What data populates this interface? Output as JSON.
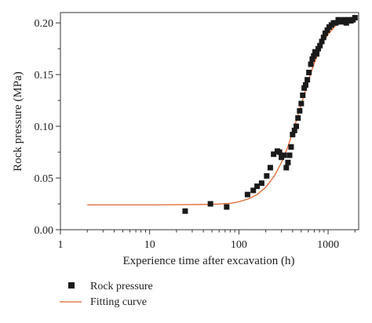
{
  "chart_data": {
    "type": "scatter",
    "title": "",
    "xlabel": "Experience time after excavation (h)",
    "ylabel": "Rock pressure (MPa)",
    "xscale": "log",
    "xlim": [
      1,
      2200
    ],
    "ylim": [
      0,
      0.21
    ],
    "xticks": [
      1,
      10,
      100,
      1000
    ],
    "xtick_labels": [
      "1",
      "10",
      "100",
      "1000"
    ],
    "yticks": [
      0,
      0.05,
      0.1,
      0.15,
      0.2
    ],
    "ytick_labels": [
      "0.00",
      "0.05",
      "0.10",
      "0.15",
      "0.20"
    ],
    "grid": false,
    "legend_position": "bottom-left",
    "series": [
      {
        "name": "Rock pressure",
        "kind": "scatter",
        "marker": "square",
        "color": "#1a1a1a",
        "points": [
          [
            25,
            0.018
          ],
          [
            48,
            0.025
          ],
          [
            73,
            0.022
          ],
          [
            125,
            0.034
          ],
          [
            145,
            0.038
          ],
          [
            160,
            0.042
          ],
          [
            180,
            0.045
          ],
          [
            205,
            0.052
          ],
          [
            225,
            0.06
          ],
          [
            245,
            0.073
          ],
          [
            270,
            0.076
          ],
          [
            285,
            0.075
          ],
          [
            300,
            0.07
          ],
          [
            320,
            0.072
          ],
          [
            340,
            0.06
          ],
          [
            355,
            0.065
          ],
          [
            370,
            0.072
          ],
          [
            385,
            0.08
          ],
          [
            400,
            0.092
          ],
          [
            420,
            0.096
          ],
          [
            440,
            0.1
          ],
          [
            460,
            0.108
          ],
          [
            480,
            0.115
          ],
          [
            500,
            0.122
          ],
          [
            520,
            0.13
          ],
          [
            540,
            0.137
          ],
          [
            560,
            0.14
          ],
          [
            585,
            0.145
          ],
          [
            610,
            0.152
          ],
          [
            640,
            0.16
          ],
          [
            665,
            0.165
          ],
          [
            690,
            0.168
          ],
          [
            715,
            0.172
          ],
          [
            745,
            0.17
          ],
          [
            775,
            0.175
          ],
          [
            810,
            0.178
          ],
          [
            850,
            0.182
          ],
          [
            890,
            0.186
          ],
          [
            930,
            0.19
          ],
          [
            980,
            0.193
          ],
          [
            1030,
            0.196
          ],
          [
            1090,
            0.198
          ],
          [
            1150,
            0.2
          ],
          [
            1220,
            0.2
          ],
          [
            1300,
            0.203
          ],
          [
            1400,
            0.201
          ],
          [
            1500,
            0.203
          ],
          [
            1600,
            0.2
          ],
          [
            1700,
            0.203
          ],
          [
            1800,
            0.202
          ],
          [
            1900,
            0.203
          ],
          [
            2000,
            0.205
          ]
        ]
      },
      {
        "name": "Fitting curve",
        "kind": "line",
        "color": "#e0662f",
        "points": [
          [
            2,
            0.024
          ],
          [
            10,
            0.024
          ],
          [
            50,
            0.0245
          ],
          [
            80,
            0.0255
          ],
          [
            100,
            0.027
          ],
          [
            130,
            0.03
          ],
          [
            160,
            0.034
          ],
          [
            200,
            0.041
          ],
          [
            250,
            0.052
          ],
          [
            300,
            0.065
          ],
          [
            350,
            0.079
          ],
          [
            400,
            0.094
          ],
          [
            450,
            0.108
          ],
          [
            500,
            0.121
          ],
          [
            550,
            0.133
          ],
          [
            600,
            0.144
          ],
          [
            650,
            0.153
          ],
          [
            700,
            0.161
          ],
          [
            800,
            0.174
          ],
          [
            900,
            0.183
          ],
          [
            1000,
            0.189
          ],
          [
            1200,
            0.197
          ],
          [
            1500,
            0.201
          ],
          [
            2000,
            0.204
          ]
        ]
      }
    ]
  }
}
